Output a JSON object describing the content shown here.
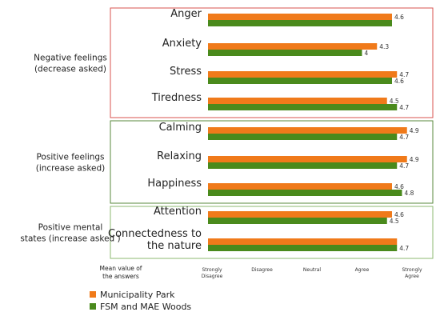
{
  "chart_data": {
    "type": "bar",
    "orientation": "horizontal",
    "xlim": [
      1,
      5
    ],
    "x_ticks": [
      {
        "value": 1,
        "lines": [
          "Strongly",
          "Disagree"
        ]
      },
      {
        "value": 2,
        "lines": [
          "Disagree"
        ]
      },
      {
        "value": 3,
        "lines": [
          "Neutral"
        ]
      },
      {
        "value": 4,
        "lines": [
          "Agree"
        ]
      },
      {
        "value": 5,
        "lines": [
          "Strongly",
          "Agree"
        ]
      }
    ],
    "xlabel_lines": [
      "Mean value of",
      "the answers"
    ],
    "groups": [
      {
        "name_lines": [
          "Negative feelings",
          "(decrease asked)"
        ],
        "border_color": "#d9534f",
        "categories": [
          {
            "label_lines": [
              "Anger"
            ],
            "park": 4.6,
            "park_label": "4.6",
            "woods": 4.6,
            "woods_label": ""
          },
          {
            "label_lines": [
              "Anxiety"
            ],
            "park": 4.3,
            "park_label": "4.3",
            "woods": 4.0,
            "woods_label": "4"
          },
          {
            "label_lines": [
              "Stress"
            ],
            "park": 4.7,
            "park_label": "4.7",
            "woods": 4.6,
            "woods_label": "4.6"
          },
          {
            "label_lines": [
              "Tiredness"
            ],
            "park": 4.5,
            "park_label": "4.5",
            "woods": 4.7,
            "woods_label": "4.7"
          }
        ]
      },
      {
        "name_lines": [
          "Positive feelings",
          "(increase asked)"
        ],
        "border_color": "#5a8a3c",
        "categories": [
          {
            "label_lines": [
              "Calming"
            ],
            "park": 4.9,
            "park_label": "4.9",
            "woods": 4.7,
            "woods_label": "4.7"
          },
          {
            "label_lines": [
              "Relaxing"
            ],
            "park": 4.9,
            "park_label": "4.9",
            "woods": 4.7,
            "woods_label": "4.7"
          },
          {
            "label_lines": [
              "Happiness"
            ],
            "park": 4.6,
            "park_label": "4.6",
            "woods": 4.8,
            "woods_label": "4.8"
          }
        ]
      },
      {
        "name_lines": [
          "Positive mental",
          "states (increase asked )"
        ],
        "border_color": "#8cb870",
        "categories": [
          {
            "label_lines": [
              "Attention"
            ],
            "park": 4.6,
            "park_label": "4.6",
            "woods": 4.5,
            "woods_label": "4.5"
          },
          {
            "label_lines": [
              "Connectedness to",
              "the nature"
            ],
            "park": 4.7,
            "park_label": "",
            "woods": 4.7,
            "woods_label": "4.7"
          }
        ]
      }
    ],
    "series": [
      {
        "name": "Municipality Park",
        "color": "#f07a1a"
      },
      {
        "name": "FSM and MAE Woods",
        "color": "#4a8a1c"
      }
    ],
    "legend_position": "bottom-left"
  }
}
